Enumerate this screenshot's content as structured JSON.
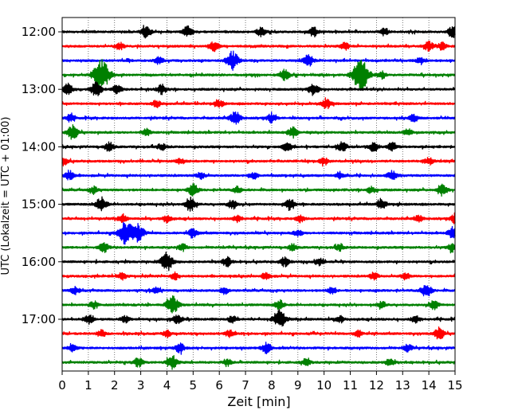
{
  "chart_data": {
    "type": "line",
    "title": "",
    "xlabel": "Zeit  [min]",
    "ylabel": "UTC (Lokalzeit = UTC + 01:00)",
    "xlim": [
      0,
      15
    ],
    "x_ticks": [
      0,
      1,
      2,
      3,
      4,
      5,
      6,
      7,
      8,
      9,
      10,
      11,
      12,
      13,
      14,
      15
    ],
    "y_tick_labels": [
      "12:00",
      "13:00",
      "14:00",
      "15:00",
      "16:00",
      "17:00"
    ],
    "grid": "vertical dotted",
    "trace_interval_minutes": 15,
    "trace_color_cycle": [
      "#000000",
      "#ff0000",
      "#0000ff",
      "#008000"
    ],
    "traces": [
      {
        "start": "12:00",
        "color": "#000000",
        "events": [
          [
            3.2,
            0.5
          ],
          [
            4.8,
            0.5
          ],
          [
            7.6,
            0.4
          ],
          [
            9.6,
            0.4
          ],
          [
            12.3,
            0.3
          ],
          [
            14.9,
            0.5
          ]
        ]
      },
      {
        "start": "12:15",
        "color": "#ff0000",
        "events": [
          [
            2.2,
            0.3
          ],
          [
            5.8,
            0.4
          ],
          [
            10.8,
            0.3
          ],
          [
            14.0,
            0.4
          ],
          [
            14.5,
            0.3
          ]
        ]
      },
      {
        "start": "12:30",
        "color": "#0000ff",
        "events": [
          [
            3.7,
            0.3
          ],
          [
            6.5,
            0.8
          ],
          [
            9.4,
            0.5
          ],
          [
            13.7,
            0.3
          ]
        ]
      },
      {
        "start": "12:45",
        "color": "#008000",
        "events": [
          [
            1.5,
            1.4
          ],
          [
            8.5,
            0.5
          ],
          [
            11.4,
            1.4
          ],
          [
            12.2,
            0.3
          ]
        ]
      },
      {
        "start": "13:00",
        "color": "#000000",
        "events": [
          [
            0.2,
            0.5
          ],
          [
            1.3,
            0.6
          ],
          [
            2.1,
            0.4
          ],
          [
            3.8,
            0.4
          ],
          [
            9.6,
            0.5
          ]
        ]
      },
      {
        "start": "13:15",
        "color": "#ff0000",
        "events": [
          [
            3.6,
            0.3
          ],
          [
            6.0,
            0.3
          ],
          [
            10.1,
            0.4
          ]
        ]
      },
      {
        "start": "13:30",
        "color": "#0000ff",
        "events": [
          [
            0.3,
            0.3
          ],
          [
            6.6,
            0.6
          ],
          [
            8.0,
            0.4
          ],
          [
            13.4,
            0.3
          ]
        ]
      },
      {
        "start": "13:45",
        "color": "#008000",
        "events": [
          [
            0.4,
            0.6
          ],
          [
            3.2,
            0.3
          ],
          [
            8.8,
            0.5
          ],
          [
            13.2,
            0.3
          ]
        ]
      },
      {
        "start": "14:00",
        "color": "#000000",
        "events": [
          [
            1.8,
            0.4
          ],
          [
            3.8,
            0.3
          ],
          [
            8.6,
            0.4
          ],
          [
            10.7,
            0.4
          ],
          [
            11.9,
            0.4
          ],
          [
            12.6,
            0.4
          ]
        ]
      },
      {
        "start": "14:15",
        "color": "#ff0000",
        "events": [
          [
            0.1,
            0.3
          ],
          [
            4.5,
            0.3
          ],
          [
            10.0,
            0.3
          ],
          [
            14.0,
            0.3
          ]
        ]
      },
      {
        "start": "14:30",
        "color": "#0000ff",
        "events": [
          [
            0.3,
            0.4
          ],
          [
            5.3,
            0.3
          ],
          [
            7.3,
            0.3
          ],
          [
            10.6,
            0.3
          ],
          [
            12.6,
            0.4
          ]
        ]
      },
      {
        "start": "14:45",
        "color": "#008000",
        "events": [
          [
            1.2,
            0.3
          ],
          [
            5.0,
            0.5
          ],
          [
            6.7,
            0.3
          ],
          [
            11.8,
            0.3
          ],
          [
            14.5,
            0.5
          ]
        ]
      },
      {
        "start": "15:00",
        "color": "#000000",
        "events": [
          [
            1.5,
            0.6
          ],
          [
            4.9,
            0.6
          ],
          [
            6.5,
            0.4
          ],
          [
            8.7,
            0.5
          ],
          [
            12.2,
            0.4
          ]
        ]
      },
      {
        "start": "15:15",
        "color": "#ff0000",
        "events": [
          [
            2.3,
            0.3
          ],
          [
            4.0,
            0.3
          ],
          [
            6.7,
            0.3
          ],
          [
            9.1,
            0.3
          ],
          [
            13.6,
            0.3
          ],
          [
            15.0,
            0.4
          ]
        ]
      },
      {
        "start": "15:30",
        "color": "#0000ff",
        "events": [
          [
            2.4,
            1.0
          ],
          [
            2.9,
            0.8
          ],
          [
            5.0,
            0.4
          ],
          [
            9.0,
            0.3
          ],
          [
            14.9,
            0.4
          ]
        ]
      },
      {
        "start": "15:45",
        "color": "#008000",
        "events": [
          [
            1.6,
            0.4
          ],
          [
            4.6,
            0.3
          ],
          [
            8.8,
            0.3
          ],
          [
            10.6,
            0.3
          ],
          [
            14.9,
            0.4
          ]
        ]
      },
      {
        "start": "16:00",
        "color": "#000000",
        "events": [
          [
            4.0,
            0.8
          ],
          [
            6.3,
            0.4
          ],
          [
            8.5,
            0.4
          ],
          [
            9.8,
            0.3
          ]
        ]
      },
      {
        "start": "16:15",
        "color": "#ff0000",
        "events": [
          [
            2.3,
            0.3
          ],
          [
            4.3,
            0.3
          ],
          [
            7.8,
            0.3
          ],
          [
            11.9,
            0.3
          ],
          [
            13.1,
            0.3
          ]
        ]
      },
      {
        "start": "16:30",
        "color": "#0000ff",
        "events": [
          [
            0.5,
            0.3
          ],
          [
            3.6,
            0.3
          ],
          [
            6.2,
            0.3
          ],
          [
            10.3,
            0.3
          ],
          [
            13.9,
            0.6
          ]
        ]
      },
      {
        "start": "16:45",
        "color": "#008000",
        "events": [
          [
            1.2,
            0.3
          ],
          [
            4.2,
            0.8
          ],
          [
            8.3,
            0.4
          ],
          [
            12.2,
            0.3
          ],
          [
            14.2,
            0.4
          ]
        ]
      },
      {
        "start": "17:00",
        "color": "#000000",
        "events": [
          [
            1.0,
            0.4
          ],
          [
            2.4,
            0.3
          ],
          [
            4.4,
            0.4
          ],
          [
            6.5,
            0.3
          ],
          [
            8.3,
            0.8
          ],
          [
            10.6,
            0.3
          ],
          [
            13.5,
            0.3
          ]
        ]
      },
      {
        "start": "17:15",
        "color": "#ff0000",
        "events": [
          [
            1.5,
            0.3
          ],
          [
            4.0,
            0.3
          ],
          [
            6.4,
            0.3
          ],
          [
            11.3,
            0.3
          ],
          [
            14.4,
            0.5
          ]
        ]
      },
      {
        "start": "17:30",
        "color": "#0000ff",
        "events": [
          [
            0.4,
            0.3
          ],
          [
            4.5,
            0.4
          ],
          [
            7.8,
            0.5
          ],
          [
            13.2,
            0.3
          ]
        ]
      },
      {
        "start": "17:45",
        "color": "#008000",
        "events": [
          [
            2.9,
            0.4
          ],
          [
            4.2,
            0.6
          ],
          [
            6.3,
            0.3
          ],
          [
            9.3,
            0.3
          ],
          [
            12.5,
            0.3
          ]
        ]
      }
    ]
  }
}
